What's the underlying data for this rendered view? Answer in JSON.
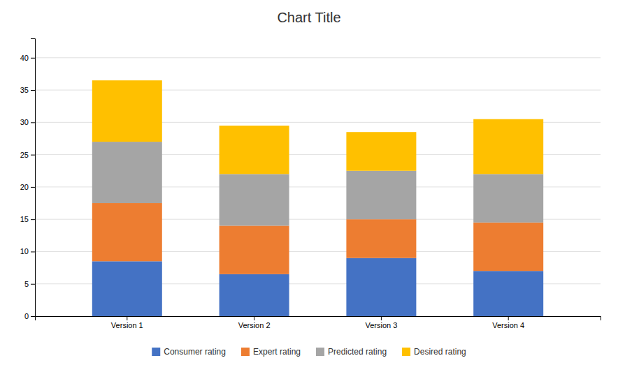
{
  "chart_data": {
    "type": "bar",
    "stacked": true,
    "title": "Chart Title",
    "categories": [
      "Version 1",
      "Version 2",
      "Version 3",
      "Version 4"
    ],
    "series": [
      {
        "name": "Consumer rating",
        "color": "#4472C4",
        "values": [
          8.5,
          6.5,
          9.0,
          7.0
        ]
      },
      {
        "name": "Expert rating",
        "color": "#ED7D31",
        "values": [
          9.0,
          7.5,
          6.0,
          7.5
        ]
      },
      {
        "name": "Predicted rating",
        "color": "#A5A5A5",
        "values": [
          9.5,
          8.0,
          7.5,
          7.5
        ]
      },
      {
        "name": "Desired rating",
        "color": "#FFC000",
        "values": [
          9.5,
          7.5,
          6.0,
          8.5
        ]
      }
    ],
    "ylim": [
      0,
      43
    ],
    "yticks": [
      0,
      5,
      10,
      15,
      20,
      25,
      30,
      35,
      40
    ],
    "grid": true,
    "legend": "bottom"
  }
}
